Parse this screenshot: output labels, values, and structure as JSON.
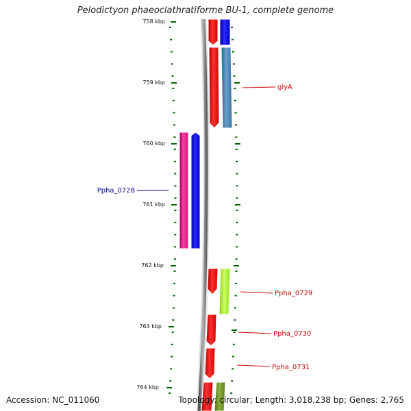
{
  "title": "Pelodictyon phaeoclathratiforme BU-1, complete genome",
  "footer": {
    "accession_label": "Accession:",
    "accession": "NC_011060",
    "topology_label": "Topology:",
    "topology": "circular",
    "length_label": "Length:",
    "length": "3,018,238 bp",
    "genes_label": "Genes:",
    "genes": "2,765"
  },
  "ticks": [
    "758 kbp",
    "759 kbp",
    "760 kbp",
    "761 kbp",
    "762 kbp",
    "763 kbp",
    "764 kbp"
  ],
  "labels": [
    {
      "name": "glyA",
      "color": "#cc0000"
    },
    {
      "name": "Ppha_0728",
      "color": "#00008b"
    },
    {
      "name": "Ppha_0729",
      "color": "#cc0000"
    },
    {
      "name": "Ppha_0730",
      "color": "#cc0000"
    },
    {
      "name": "Ppha_0731",
      "color": "#cc0000"
    }
  ],
  "colors": {
    "backbone": "#888888",
    "cds_forward": "#ff0000",
    "cds_reverse": "#ff1493",
    "gene_blue": "#0000ee",
    "gene_steelblue": "#4682b4",
    "gene_green": "#adff2f",
    "gene_olive": "#6b8e23",
    "ticks": "#006400"
  }
}
